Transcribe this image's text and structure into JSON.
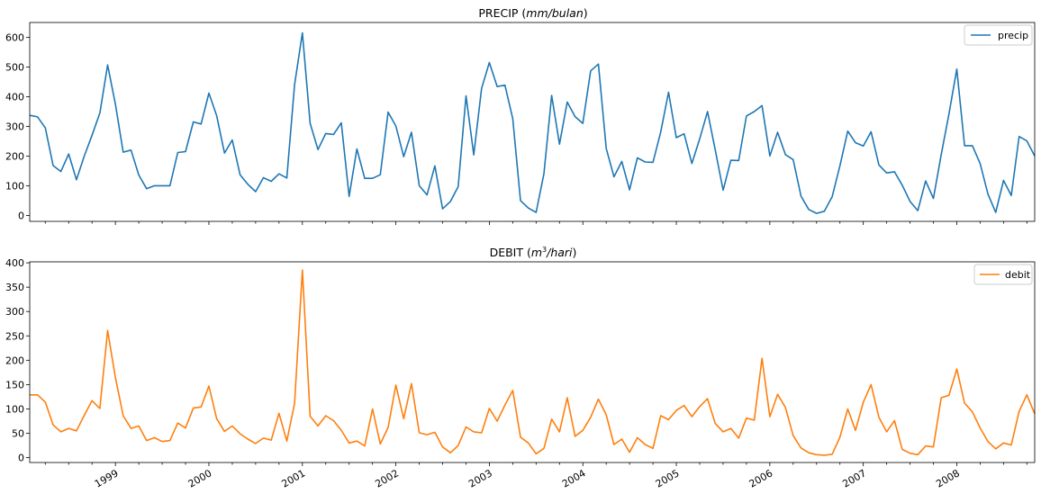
{
  "chart_data": [
    {
      "type": "line",
      "title_text": "PRECIP (",
      "title_unit": "mm/bulan",
      "title_close": ")",
      "ylim": [
        -20,
        650
      ],
      "yticks": [
        0,
        100,
        200,
        300,
        400,
        500,
        600
      ],
      "grid": false,
      "legend_position": "upper right",
      "series": [
        {
          "name": "precip",
          "color": "#1f77b4",
          "start": "1998-02",
          "values": [
            337,
            332,
            295,
            168,
            148,
            207,
            120,
            200,
            270,
            345,
            507,
            374,
            213,
            220,
            136,
            90,
            100,
            100,
            100,
            212,
            215,
            315,
            308,
            412,
            336,
            210,
            254,
            137,
            105,
            80,
            127,
            115,
            140,
            126,
            440,
            615,
            310,
            222,
            276,
            273,
            312,
            64,
            224,
            125,
            125,
            137,
            348,
            301,
            198,
            280,
            100,
            69,
            167,
            22,
            47,
            97,
            403,
            204,
            428,
            515,
            434,
            439,
            326,
            50,
            25,
            10,
            140,
            404,
            240,
            382,
            333,
            310,
            487,
            510,
            226,
            130,
            182,
            86,
            194,
            180,
            179,
            281,
            415,
            262,
            275,
            175,
            258,
            350,
            220,
            85,
            186,
            185,
            335,
            350,
            370,
            200,
            280,
            205,
            188,
            65,
            20,
            7,
            14,
            63,
            167,
            284,
            245,
            234,
            282,
            170,
            143,
            147,
            102,
            47,
            16,
            116,
            57,
            205,
            342,
            493,
            235,
            235,
            175,
            72,
            10,
            118,
            67,
            266,
            251,
            200
          ]
        }
      ]
    },
    {
      "type": "line",
      "title_text": "DEBIT (",
      "title_unit_base": "m",
      "title_unit_sup": "3",
      "title_unit_rest": "/hari",
      "title_close": ")",
      "ylim": [
        -10,
        402
      ],
      "yticks": [
        0,
        50,
        100,
        150,
        200,
        250,
        300,
        350,
        400
      ],
      "grid": false,
      "legend_position": "upper right",
      "series": [
        {
          "name": "debit",
          "color": "#ff7f0e",
          "start": "1998-02",
          "values": [
            129,
            129,
            114,
            67,
            53,
            60,
            55,
            87,
            117,
            101,
            261,
            164,
            86,
            60,
            65,
            35,
            41,
            33,
            35,
            71,
            61,
            102,
            104,
            147,
            80,
            54,
            65,
            49,
            38,
            29,
            40,
            36,
            91,
            34,
            111,
            385,
            85,
            65,
            86,
            76,
            56,
            30,
            34,
            24,
            100,
            28,
            62,
            149,
            80,
            152,
            51,
            47,
            52,
            22,
            10,
            25,
            63,
            53,
            51,
            101,
            75,
            108,
            138,
            42,
            30,
            8,
            19,
            79,
            53,
            123,
            44,
            56,
            83,
            120,
            88,
            27,
            38,
            11,
            41,
            27,
            19,
            86,
            78,
            97,
            107,
            84,
            105,
            121,
            70,
            53,
            60,
            40,
            81,
            77,
            204,
            84,
            130,
            103,
            45,
            20,
            10,
            6,
            5,
            7,
            42,
            100,
            56,
            114,
            150,
            83,
            53,
            76,
            17,
            9,
            6,
            24,
            22,
            123,
            128,
            182,
            112,
            94,
            61,
            33,
            18,
            30,
            26,
            95,
            129,
            90
          ]
        }
      ]
    }
  ],
  "x_axis": {
    "type": "date",
    "range": [
      "1998-02",
      "1998-02"
    ],
    "xlim": [
      "1998-02",
      "2008-11"
    ],
    "tick_labels": [
      "1999",
      "2000",
      "2001",
      "2002",
      "2003",
      "2004",
      "2005",
      "2006",
      "2007",
      "2008"
    ],
    "label_rotation": "30deg"
  }
}
